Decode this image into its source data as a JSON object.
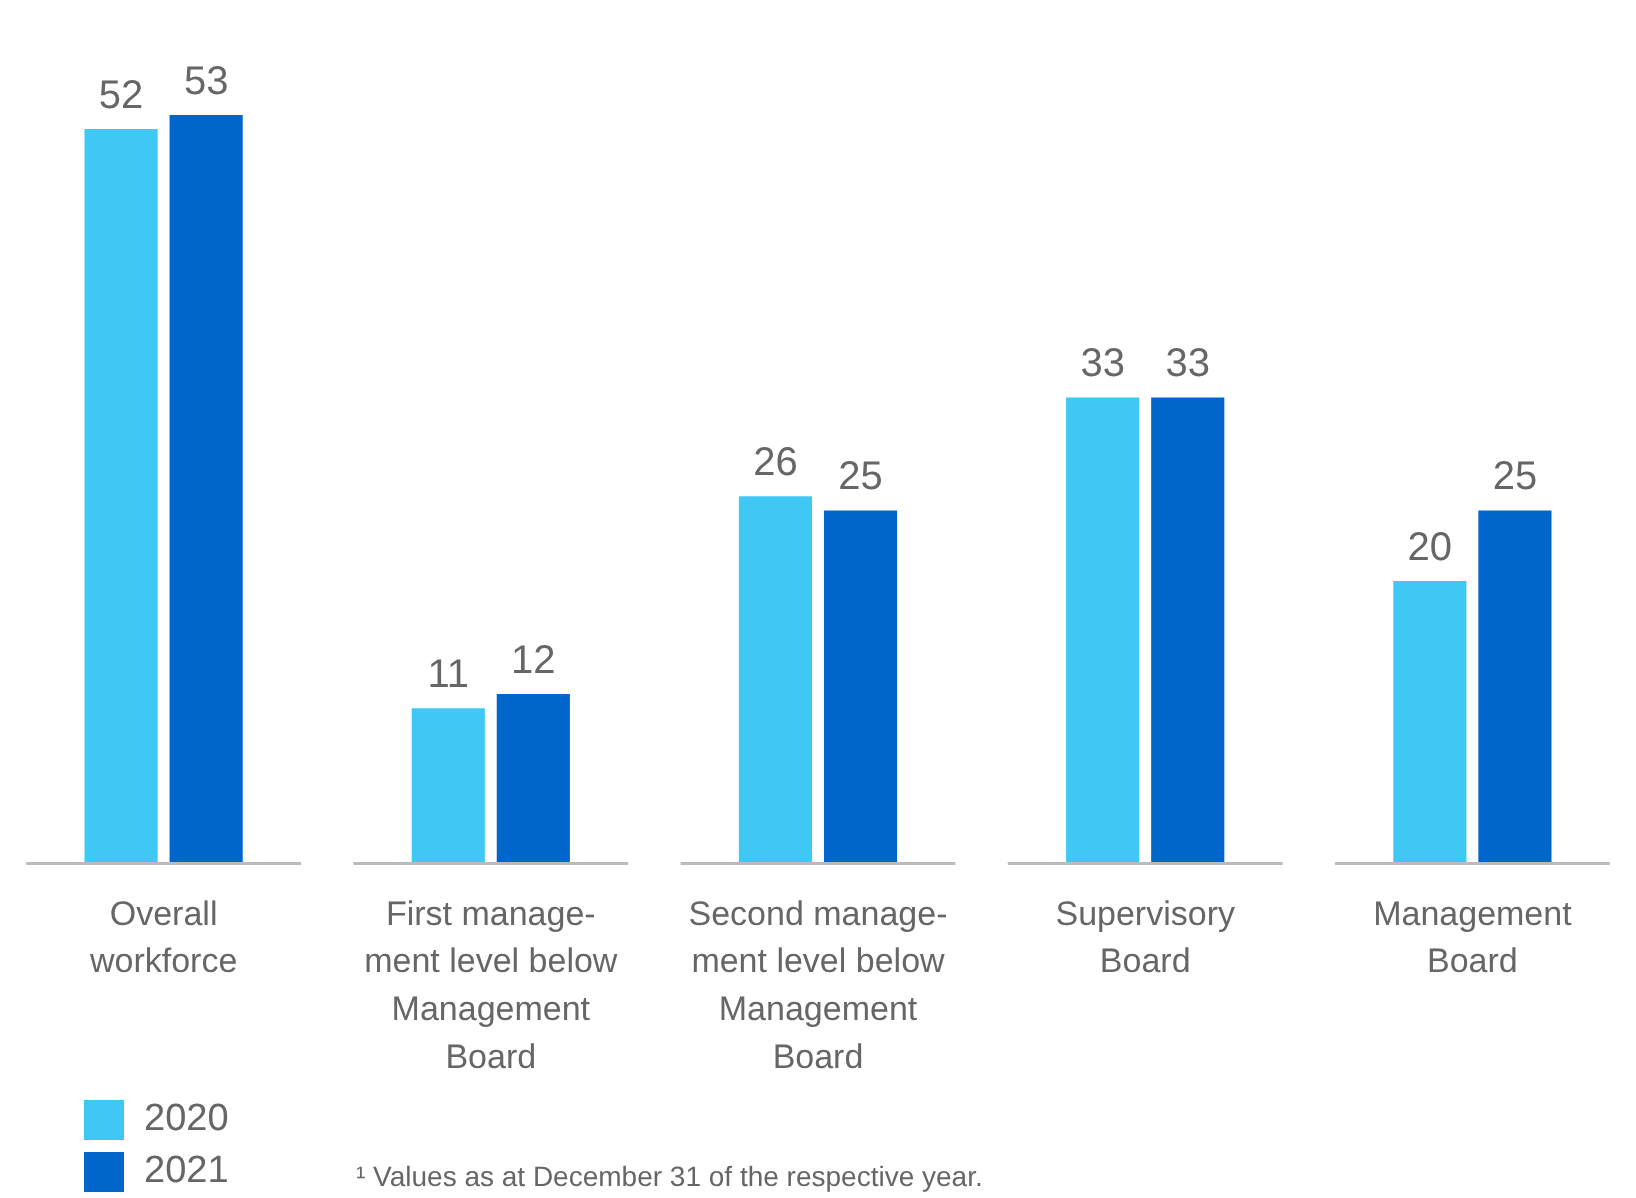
{
  "chart_data": {
    "type": "bar",
    "categories": [
      "Overall\nworkforce",
      "First manage-\nment level below\nManagement\nBoard",
      "Second manage-\nment level below\nManagement\nBoard",
      "Supervisory\nBoard",
      "Management\nBoard"
    ],
    "series": [
      {
        "name": "2020",
        "color": "#40c8f4",
        "values": [
          52,
          11,
          26,
          33,
          20
        ]
      },
      {
        "name": "2021",
        "color": "#0066cc",
        "values": [
          53,
          12,
          25,
          33,
          25
        ]
      }
    ],
    "data_labels": true,
    "legend": "bottom left",
    "grid": false,
    "annotations": [
      "¹  Values as at December 31 of the respective year."
    ]
  }
}
